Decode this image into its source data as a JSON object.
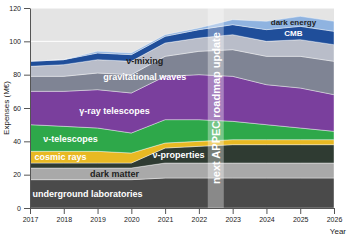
{
  "chart_data": {
    "type": "area",
    "stacked": true,
    "grid": true,
    "x_label": "Year",
    "y_label": "Expenses (M€)",
    "x": [
      2017,
      2018,
      2019,
      2020,
      2021,
      2022,
      2023,
      2024,
      2025,
      2026
    ],
    "xlim": [
      2017,
      2026
    ],
    "xticks": [
      2017,
      2018,
      2019,
      2020,
      2021,
      2022,
      2023,
      2024,
      2025,
      2026
    ],
    "ylim": [
      0,
      120
    ],
    "yticks": [
      0,
      20,
      40,
      60,
      80,
      100,
      120
    ],
    "series": [
      {
        "name": "underground laboratories",
        "color": "#4a4a4a",
        "values": [
          17,
          17,
          17,
          17,
          18,
          18,
          18,
          18,
          18,
          18
        ]
      },
      {
        "name": "dark matter",
        "color": "#a9a9a9",
        "values": [
          7,
          7,
          7,
          7,
          9,
          9,
          9,
          9,
          9,
          9
        ]
      },
      {
        "name": "ν-properties",
        "color": "#2f3b32",
        "values": [
          3,
          3,
          3,
          3,
          9,
          10,
          11,
          11,
          11,
          11
        ]
      },
      {
        "name": "cosmic rays",
        "color": "#e8b923",
        "values": [
          7,
          7,
          7,
          6,
          3,
          3,
          3,
          3,
          3,
          3
        ]
      },
      {
        "name": "ν-telescopes",
        "color": "#2ea84a",
        "values": [
          16,
          15,
          14,
          12,
          14,
          13,
          11,
          9,
          7,
          5
        ]
      },
      {
        "name": "γ-ray telescopes",
        "color": "#7a3f9d",
        "values": [
          20,
          21,
          23,
          24,
          26,
          27,
          27,
          24,
          24,
          22
        ]
      },
      {
        "name": "gravitational waves",
        "color": "#7f8494",
        "values": [
          9,
          9,
          10,
          11,
          12,
          14,
          16,
          17,
          19,
          20
        ]
      },
      {
        "name": "ν-mixing",
        "color": "#b9bdc9",
        "values": [
          6,
          7,
          8,
          8,
          8,
          8,
          9,
          9,
          10,
          10
        ]
      },
      {
        "name": "CMB",
        "color": "#1f4e9a",
        "values": [
          3,
          3,
          4,
          4,
          4,
          5,
          6,
          7,
          8,
          8
        ]
      },
      {
        "name": "dark energy",
        "color": "#8fb3e0",
        "values": [
          0,
          0,
          1,
          1,
          1,
          1,
          3,
          5,
          6,
          6
        ]
      }
    ],
    "annotations": [
      {
        "text": "next APPEC roadmap update",
        "x": 2022.5
      }
    ]
  }
}
